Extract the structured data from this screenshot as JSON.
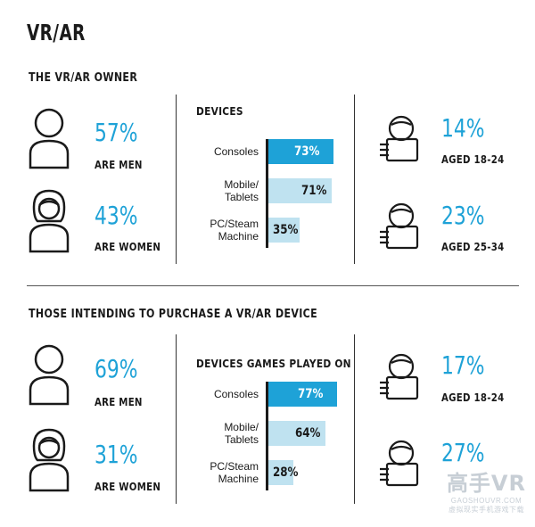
{
  "page_title": "VR/AR",
  "sections": [
    {
      "title": "THE VR/AR OWNER",
      "gender": [
        {
          "pct": "57%",
          "label": "ARE MEN"
        },
        {
          "pct": "43%",
          "label": "ARE WOMEN"
        }
      ],
      "age": [
        {
          "pct": "14%",
          "label": "AGED 18-24"
        },
        {
          "pct": "23%",
          "label": "AGED 25-34"
        }
      ]
    },
    {
      "title": "THOSE INTENDING TO PURCHASE A VR/AR DEVICE",
      "gender": [
        {
          "pct": "69%",
          "label": "ARE MEN"
        },
        {
          "pct": "31%",
          "label": "ARE WOMEN"
        }
      ],
      "age": [
        {
          "pct": "17%",
          "label": "AGED 18-24"
        },
        {
          "pct": "27%",
          "label": ""
        }
      ]
    }
  ],
  "chart_data": [
    {
      "type": "bar",
      "title": "DEVICES",
      "categories": [
        "Consoles",
        "Mobile/\nTablets",
        "PC/Steam\nMachine"
      ],
      "values": [
        73,
        71,
        35
      ],
      "value_labels": [
        "73%",
        "71%",
        "35%"
      ],
      "colors": [
        "#1ea2d7",
        "#bfe2f0",
        "#bfe2f0"
      ]
    },
    {
      "type": "bar",
      "title": "DEVICES GAMES PLAYED ON",
      "categories": [
        "Consoles",
        "Mobile/\nTablets",
        "PC/Steam\nMachine"
      ],
      "values": [
        77,
        64,
        28
      ],
      "value_labels": [
        "77%",
        "64%",
        "28%"
      ],
      "colors": [
        "#1ea2d7",
        "#bfe2f0",
        "#bfe2f0"
      ]
    }
  ],
  "watermark": {
    "main": "高手VR",
    "sub": "GAOSHOUVR.COM",
    "tagline": "虚拟现实手机游戏下载"
  }
}
